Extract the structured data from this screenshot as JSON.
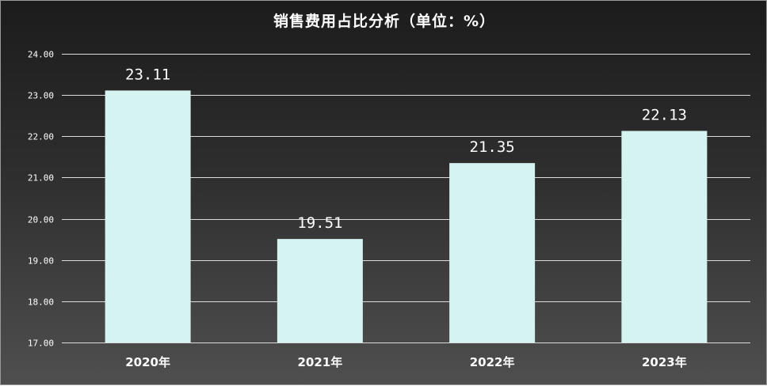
{
  "chart_data": {
    "type": "bar",
    "title": "销售费用占比分析（单位：%）",
    "categories": [
      "2020年",
      "2021年",
      "2022年",
      "2023年"
    ],
    "values": [
      23.11,
      19.51,
      21.35,
      22.13
    ],
    "data_labels": [
      "23.11",
      "19.51",
      "21.35",
      "22.13"
    ],
    "ylim": [
      17,
      24
    ],
    "yticks": [
      17,
      18,
      19,
      20,
      21,
      22,
      23,
      24
    ],
    "ytick_labels": [
      "17.00",
      "18.00",
      "19.00",
      "20.00",
      "21.00",
      "22.00",
      "23.00",
      "24.00"
    ],
    "grid": true,
    "bar_color": "#d5f3f0",
    "background_top": "#1c1c1c",
    "background_bottom": "#4f4f4f",
    "text_color": "#ffffff"
  }
}
